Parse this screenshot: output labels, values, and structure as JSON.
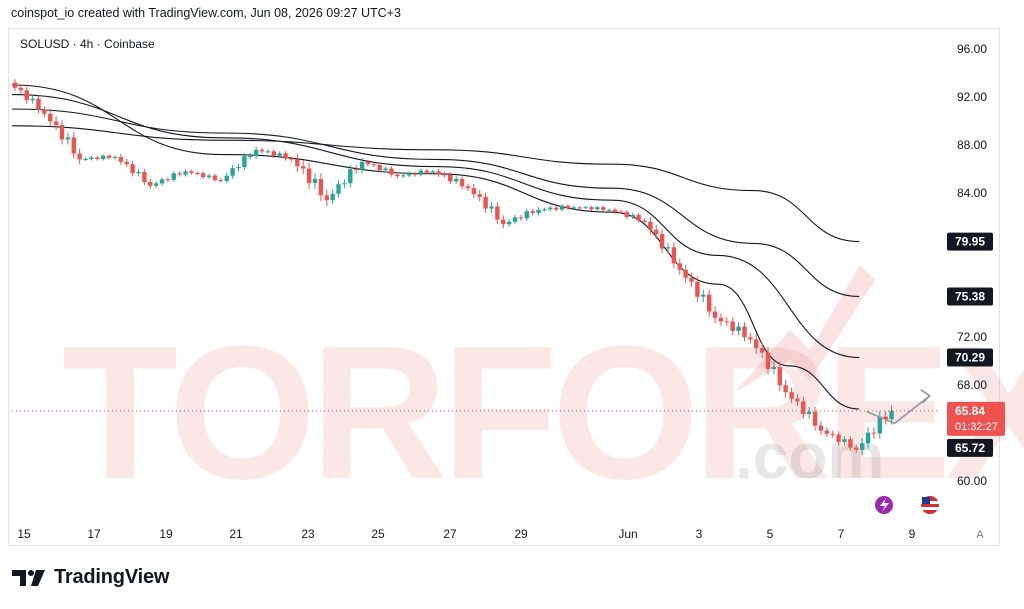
{
  "header": {
    "text": "coinspot_io created with TradingView.com, Jun 08, 2026 09:27 UTC+3"
  },
  "chart_title": "SOLUSD · 4h · Coinbase",
  "watermark": {
    "main": "TORFOREX",
    "suffix": ".com"
  },
  "brand": {
    "name": "TradingView"
  },
  "colors": {
    "up": "#26a69a",
    "down": "#ef5350",
    "ma": "#131722",
    "last": "#ef5350"
  },
  "chart_data": {
    "type": "candlestick",
    "symbol": "SOLUSD",
    "interval": "4h",
    "exchange": "Coinbase",
    "ylim": [
      58,
      98
    ],
    "y_ticks": [
      "96.00",
      "92.00",
      "88.00",
      "84.00",
      "72.00",
      "68.00",
      "60.00"
    ],
    "x_ticks": [
      "15",
      "17",
      "19",
      "21",
      "23",
      "25",
      "27",
      "29",
      "Jun",
      "3",
      "5",
      "7",
      "9"
    ],
    "candles_daily": [
      {
        "day": "May 15",
        "open": 93.2,
        "high": 93.6,
        "low": 90.0,
        "close": 90.6
      },
      {
        "day": "May 16",
        "open": 90.6,
        "high": 91.2,
        "low": 86.0,
        "close": 86.8
      },
      {
        "day": "May 17",
        "open": 86.8,
        "high": 87.6,
        "low": 86.0,
        "close": 87.0
      },
      {
        "day": "May 18",
        "open": 87.0,
        "high": 87.3,
        "low": 84.0,
        "close": 84.6
      },
      {
        "day": "May 19",
        "open": 84.6,
        "high": 86.2,
        "low": 84.0,
        "close": 85.8
      },
      {
        "day": "May 20",
        "open": 85.8,
        "high": 86.0,
        "low": 84.2,
        "close": 85.0
      },
      {
        "day": "May 21",
        "open": 85.0,
        "high": 88.0,
        "low": 84.8,
        "close": 87.6
      },
      {
        "day": "May 22",
        "open": 87.6,
        "high": 88.2,
        "low": 86.0,
        "close": 86.8
      },
      {
        "day": "May 23",
        "open": 86.8,
        "high": 87.4,
        "low": 81.5,
        "close": 83.4
      },
      {
        "day": "May 24",
        "open": 83.4,
        "high": 87.2,
        "low": 83.0,
        "close": 86.6
      },
      {
        "day": "May 25",
        "open": 86.6,
        "high": 87.0,
        "low": 84.8,
        "close": 85.4
      },
      {
        "day": "May 26",
        "open": 85.4,
        "high": 86.4,
        "low": 84.6,
        "close": 85.8
      },
      {
        "day": "May 27",
        "open": 85.8,
        "high": 86.0,
        "low": 83.2,
        "close": 84.4
      },
      {
        "day": "May 28",
        "open": 84.4,
        "high": 84.8,
        "low": 80.4,
        "close": 81.4
      },
      {
        "day": "May 29",
        "open": 81.4,
        "high": 83.2,
        "low": 80.6,
        "close": 82.6
      },
      {
        "day": "May 30",
        "open": 82.6,
        "high": 83.4,
        "low": 81.6,
        "close": 82.8
      },
      {
        "day": "May 31",
        "open": 82.8,
        "high": 83.4,
        "low": 82.0,
        "close": 82.6
      },
      {
        "day": "Jun 01",
        "open": 82.6,
        "high": 83.0,
        "low": 80.8,
        "close": 81.6
      },
      {
        "day": "Jun 02",
        "open": 81.6,
        "high": 82.0,
        "low": 77.0,
        "close": 77.6
      },
      {
        "day": "Jun 03",
        "open": 77.6,
        "high": 78.0,
        "low": 72.6,
        "close": 73.6
      },
      {
        "day": "Jun 04",
        "open": 73.6,
        "high": 75.4,
        "low": 71.0,
        "close": 71.8
      },
      {
        "day": "Jun 05",
        "open": 71.8,
        "high": 72.4,
        "low": 66.6,
        "close": 67.4
      },
      {
        "day": "Jun 06",
        "open": 67.4,
        "high": 67.8,
        "low": 63.0,
        "close": 64.2
      },
      {
        "day": "Jun 07",
        "open": 64.2,
        "high": 64.6,
        "low": 61.4,
        "close": 62.6
      },
      {
        "day": "Jun 08",
        "open": 62.6,
        "high": 67.8,
        "low": 62.2,
        "close": 65.84
      }
    ],
    "moving_averages": [
      {
        "points": [
          [
            0,
            89.6
          ],
          [
            6,
            88.4
          ],
          [
            12,
            87.6
          ],
          [
            17,
            86.4
          ],
          [
            21,
            84.2
          ],
          [
            24,
            79.95
          ]
        ],
        "label": "79.95"
      },
      {
        "points": [
          [
            0,
            91.0
          ],
          [
            6,
            89.0
          ],
          [
            12,
            86.8
          ],
          [
            17,
            84.4
          ],
          [
            21,
            79.8
          ],
          [
            24,
            75.38
          ]
        ],
        "label": "75.38"
      },
      {
        "points": [
          [
            0,
            92.2
          ],
          [
            6,
            88.6
          ],
          [
            12,
            86.2
          ],
          [
            17,
            83.4
          ],
          [
            20,
            78.8
          ],
          [
            24,
            70.29
          ]
        ],
        "label": "70.29"
      },
      {
        "points": [
          [
            0,
            93.0
          ],
          [
            6,
            87.2
          ],
          [
            12,
            85.6
          ],
          [
            17,
            82.4
          ],
          [
            20,
            76.4
          ],
          [
            22,
            69.6
          ],
          [
            24,
            66.0
          ]
        ],
        "label": ""
      }
    ],
    "price_labels": {
      "last": "65.84",
      "countdown": "01:32:27",
      "ma_fast": "65.72",
      "ma_levels": [
        "79.95",
        "75.38",
        "70.29"
      ]
    },
    "projection_arrow": {
      "from_day": 24.2,
      "from_price": 65.8,
      "mid_day": 25.0,
      "mid_price": 64.8,
      "to_day": 26.0,
      "to_price": 67.1
    },
    "grid": false,
    "axis_letter": "A"
  }
}
